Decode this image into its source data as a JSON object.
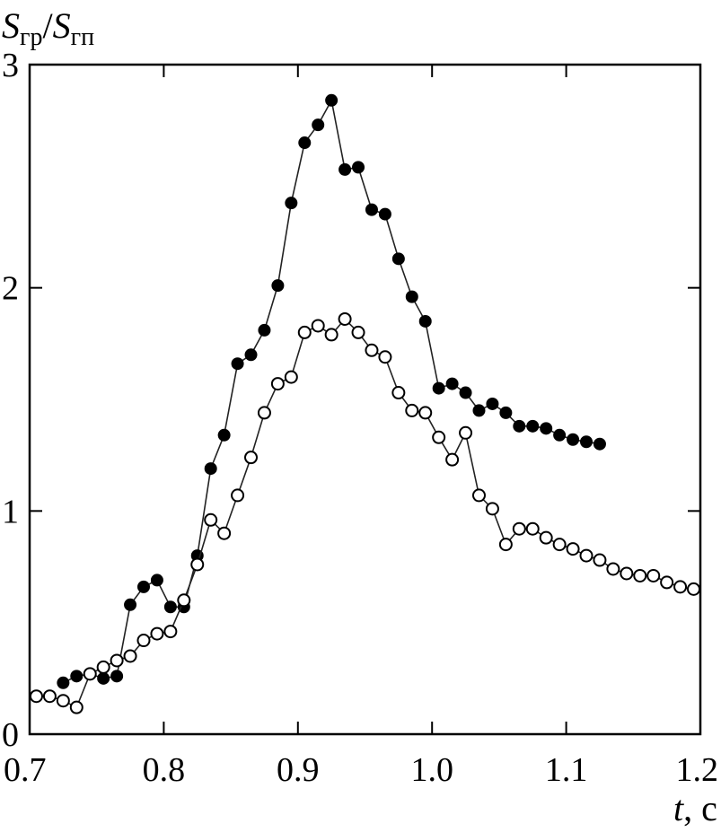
{
  "chart_data": {
    "type": "scatter",
    "xlim": [
      0.7,
      1.2
    ],
    "ylim": [
      0,
      3
    ],
    "x_ticks": [
      "0.7",
      "0.8",
      "0.9",
      "1.0",
      "1.1",
      "1.2"
    ],
    "y_ticks": [
      "0",
      "1",
      "2",
      "3"
    ],
    "x_tick_values": [
      0.7,
      0.8,
      0.9,
      1.0,
      1.1,
      1.2
    ],
    "y_tick_values": [
      0,
      1,
      2,
      3
    ],
    "ylabel": {
      "main": "S",
      "sub1": "гр",
      "sep": "/",
      "main2": "S",
      "sub2": "гп"
    },
    "xlabel": {
      "var": "t",
      "rest": ", с"
    },
    "grid": false,
    "legend": "none",
    "series": [
      {
        "marker": "filled-circle",
        "x": [
          0.725,
          0.735,
          0.745,
          0.755,
          0.765,
          0.775,
          0.785,
          0.795,
          0.805,
          0.815,
          0.825,
          0.835,
          0.845,
          0.855,
          0.865,
          0.875,
          0.885,
          0.895,
          0.905,
          0.915,
          0.925,
          0.935,
          0.945,
          0.955,
          0.965,
          0.975,
          0.985,
          0.995,
          1.005,
          1.015,
          1.025,
          1.035,
          1.045,
          1.055,
          1.065,
          1.075,
          1.085,
          1.095,
          1.105,
          1.115,
          1.125
        ],
        "y": [
          0.23,
          0.26,
          0.27,
          0.25,
          0.26,
          0.58,
          0.66,
          0.69,
          0.57,
          0.57,
          0.8,
          1.19,
          1.34,
          1.66,
          1.7,
          1.81,
          2.01,
          2.38,
          2.65,
          2.73,
          2.84,
          2.53,
          2.54,
          2.35,
          2.33,
          2.13,
          1.96,
          1.85,
          1.55,
          1.57,
          1.53,
          1.45,
          1.48,
          1.44,
          1.38,
          1.38,
          1.37,
          1.34,
          1.32,
          1.31,
          1.3
        ]
      },
      {
        "marker": "open-circle",
        "x": [
          0.705,
          0.715,
          0.725,
          0.735,
          0.745,
          0.755,
          0.765,
          0.775,
          0.785,
          0.795,
          0.805,
          0.815,
          0.825,
          0.835,
          0.845,
          0.855,
          0.865,
          0.875,
          0.885,
          0.895,
          0.905,
          0.915,
          0.925,
          0.935,
          0.945,
          0.955,
          0.965,
          0.975,
          0.985,
          0.995,
          1.005,
          1.015,
          1.025,
          1.035,
          1.045,
          1.055,
          1.065,
          1.075,
          1.085,
          1.095,
          1.105,
          1.115,
          1.125,
          1.135,
          1.145,
          1.155,
          1.165,
          1.175,
          1.185,
          1.195
        ],
        "y": [
          0.17,
          0.17,
          0.15,
          0.12,
          0.27,
          0.3,
          0.33,
          0.35,
          0.42,
          0.45,
          0.46,
          0.6,
          0.76,
          0.96,
          0.9,
          1.07,
          1.24,
          1.44,
          1.57,
          1.6,
          1.8,
          1.83,
          1.79,
          1.86,
          1.8,
          1.72,
          1.69,
          1.53,
          1.45,
          1.44,
          1.33,
          1.23,
          1.35,
          1.07,
          1.01,
          0.85,
          0.92,
          0.92,
          0.88,
          0.85,
          0.83,
          0.8,
          0.78,
          0.74,
          0.72,
          0.71,
          0.71,
          0.68,
          0.66,
          0.65
        ]
      }
    ]
  }
}
